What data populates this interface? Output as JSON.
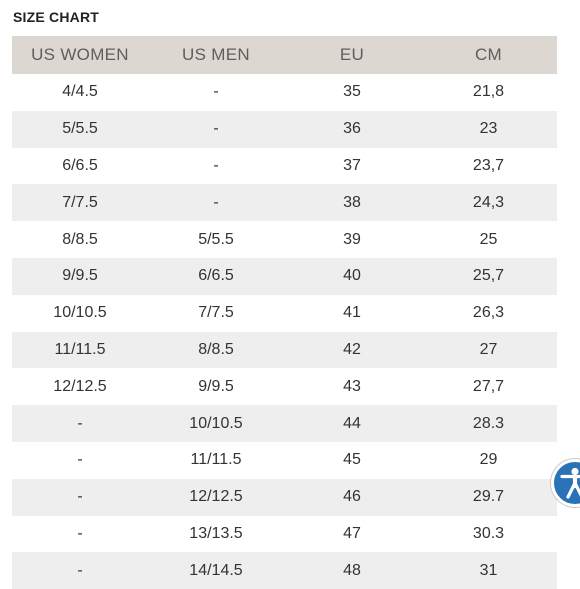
{
  "title": "SIZE CHART",
  "table": {
    "headers": [
      "US WOMEN",
      "US MEN",
      "EU",
      "CM"
    ],
    "rows": [
      [
        "4/4.5",
        "-",
        "35",
        "21,8"
      ],
      [
        "5/5.5",
        "-",
        "36",
        "23"
      ],
      [
        "6/6.5",
        "-",
        "37",
        "23,7"
      ],
      [
        "7/7.5",
        "-",
        "38",
        "24,3"
      ],
      [
        "8/8.5",
        "5/5.5",
        "39",
        "25"
      ],
      [
        "9/9.5",
        "6/6.5",
        "40",
        "25,7"
      ],
      [
        "10/10.5",
        "7/7.5",
        "41",
        "26,3"
      ],
      [
        "11/11.5",
        "8/8.5",
        "42",
        "27"
      ],
      [
        "12/12.5",
        "9/9.5",
        "43",
        "27,7"
      ],
      [
        "-",
        "10/10.5",
        "44",
        "28.3"
      ],
      [
        "-",
        "11/11.5",
        "45",
        "29"
      ],
      [
        "-",
        "12/12.5",
        "46",
        "29.7"
      ],
      [
        "-",
        "13/13.5",
        "47",
        "30.3"
      ],
      [
        "-",
        "14/14.5",
        "48",
        "31"
      ]
    ]
  },
  "accessibility_button": {
    "icon": "accessibility-icon",
    "color": "#2a72b6"
  }
}
